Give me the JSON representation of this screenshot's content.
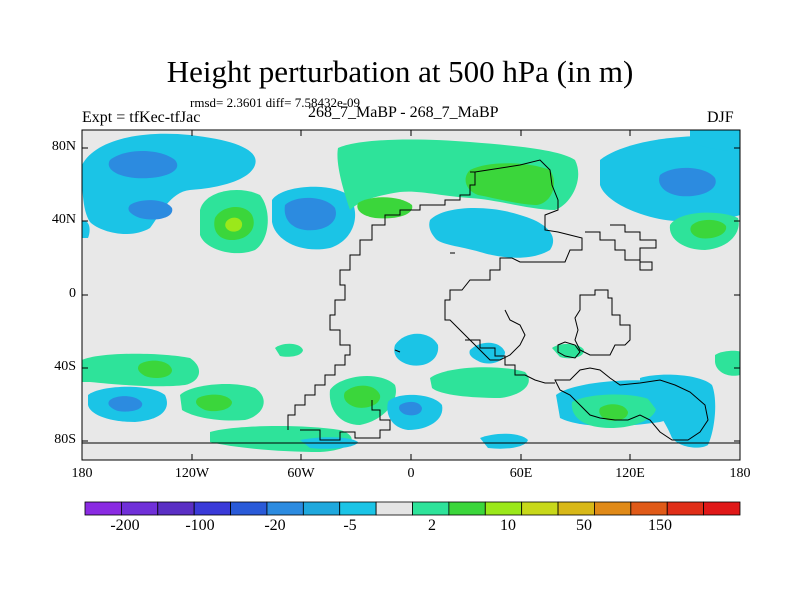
{
  "title": "Height perturbation at 500 hPa (in m)",
  "stats_text": "rmsd= 2.3601 diff= 7.58432e-09",
  "left_label": "Expt = tfKec-tfJac",
  "center_label": "268_7_MaBP - 268_7_MaBP",
  "right_label": "DJF",
  "lat_ticks": [
    "80N",
    "40N",
    "0",
    "40S",
    "80S"
  ],
  "lon_ticks": [
    "180",
    "120W",
    "60W",
    "0",
    "60E",
    "120E",
    "180"
  ],
  "colorbar": {
    "colors": [
      "#8a2be2",
      "#7030d8",
      "#5a2fc4",
      "#3a3ad8",
      "#2a5ad8",
      "#2c8be0",
      "#1fa8dd",
      "#1bc4e6",
      "#e5e5e5",
      "#2ee39a",
      "#3bd63b",
      "#9be81a",
      "#c8d81a",
      "#d8b818",
      "#e08a18",
      "#e05a18",
      "#e02e18",
      "#e01818"
    ],
    "labels": [
      "-200",
      "-100",
      "-20",
      "-5",
      "2",
      "10",
      "50",
      "150"
    ]
  },
  "palette": {
    "land_background": "#e8e8e8",
    "neg_light": "#1bc4e6",
    "neg_mid": "#2c8be0",
    "pos_light": "#2ee39a",
    "pos_mid": "#3bd63b",
    "pos_high": "#9be81a"
  }
}
